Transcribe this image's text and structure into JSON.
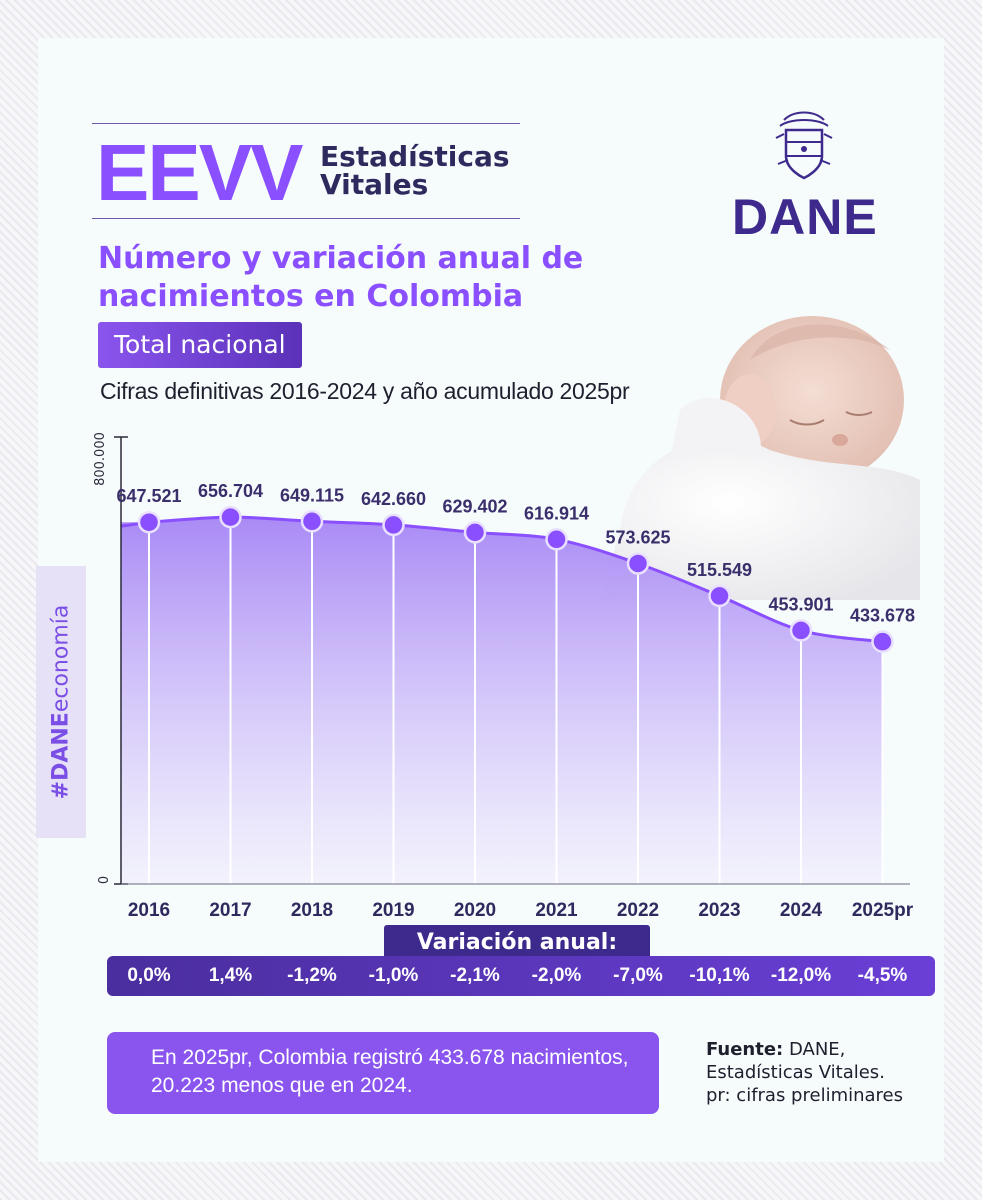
{
  "header": {
    "brand_code": "EEVV",
    "brand_name_line1": "Estadísticas",
    "brand_name_line2": "Vitales",
    "logo_text": "DANE"
  },
  "title": "Número y variación anual de nacimientos en Colombia",
  "subtitle_badge": "Total nacional",
  "note": "Cifras definitivas 2016-2024 y año acumulado 2025pr",
  "hashtag": {
    "strong": "#DANE",
    "thin": "economía"
  },
  "chart_data": {
    "type": "area",
    "categories": [
      "2016",
      "2017",
      "2018",
      "2019",
      "2020",
      "2021",
      "2022",
      "2023",
      "2024",
      "2025pr"
    ],
    "values": [
      647521,
      656704,
      649115,
      642660,
      629402,
      616914,
      573625,
      515549,
      453901,
      433678
    ],
    "data_labels": [
      "647.521",
      "656.704",
      "649.115",
      "642.660",
      "629.402",
      "616.914",
      "573.625",
      "515.549",
      "453.901",
      "433.678"
    ],
    "ylim": [
      0,
      800000
    ],
    "y_tick_labels": [
      "0",
      "800.000"
    ],
    "grid": false,
    "colors": {
      "line": "#8a4fff",
      "fill_top": "#a98af5",
      "fill_bottom": "#f0ecfd",
      "marker": "#8a4fff",
      "label": "#3a2f6b"
    }
  },
  "variation": {
    "label": "Variación anual:",
    "values": [
      "0,0%",
      "1,4%",
      "-1,2%",
      "-1,0%",
      "-2,1%",
      "-2,0%",
      "-7,0%",
      "-10,1%",
      "-12,0%",
      "-4,5%"
    ]
  },
  "summary": "En 2025pr, Colombia registró 433.678 nacimientos, 20.223 menos que en 2024.",
  "source": {
    "label": "Fuente:",
    "line1": "DANE,",
    "line2": "Estadísticas Vitales.",
    "line3": "pr: cifras preliminares"
  }
}
